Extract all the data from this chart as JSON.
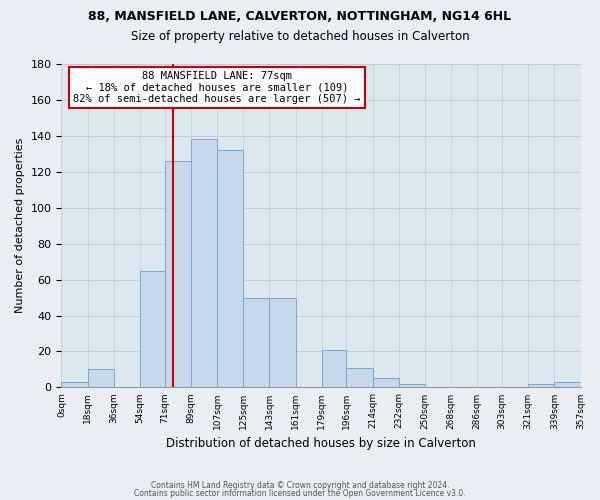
{
  "title1": "88, MANSFIELD LANE, CALVERTON, NOTTINGHAM, NG14 6HL",
  "title2": "Size of property relative to detached houses in Calverton",
  "xlabel": "Distribution of detached houses by size in Calverton",
  "ylabel": "Number of detached properties",
  "bar_color": "#c8d8ec",
  "bar_edge_color": "#7aa8c8",
  "marker_line_color": "#cc0000",
  "marker_value": 77,
  "bin_edges": [
    0,
    18,
    36,
    54,
    71,
    89,
    107,
    125,
    143,
    161,
    179,
    196,
    214,
    232,
    250,
    268,
    286,
    303,
    321,
    339,
    357
  ],
  "bin_labels": [
    "0sqm",
    "18sqm",
    "36sqm",
    "54sqm",
    "71sqm",
    "89sqm",
    "107sqm",
    "125sqm",
    "143sqm",
    "161sqm",
    "179sqm",
    "196sqm",
    "214sqm",
    "232sqm",
    "250sqm",
    "268sqm",
    "286sqm",
    "303sqm",
    "321sqm",
    "339sqm",
    "357sqm"
  ],
  "bar_heights": [
    3,
    10,
    0,
    65,
    126,
    138,
    132,
    50,
    50,
    0,
    21,
    11,
    5,
    2,
    0,
    0,
    0,
    0,
    2,
    3
  ],
  "ylim": [
    0,
    180
  ],
  "yticks": [
    0,
    20,
    40,
    60,
    80,
    100,
    120,
    140,
    160,
    180
  ],
  "annot_line1": "88 MANSFIELD LANE: 77sqm",
  "annot_line2": "← 18% of detached houses are smaller (109)",
  "annot_line3": "82% of semi-detached houses are larger (507) →",
  "footer1": "Contains HM Land Registry data © Crown copyright and database right 2024.",
  "footer2": "Contains public sector information licensed under the Open Government Licence v3.0.",
  "background_color": "#e8eef4",
  "plot_bg_color": "#dce8f0",
  "grid_color": "#c0ccd8"
}
